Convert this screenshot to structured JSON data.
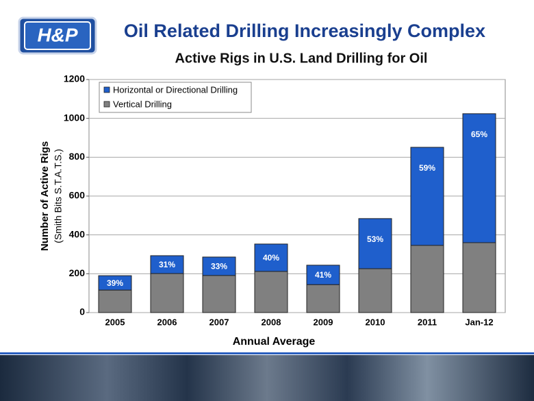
{
  "logo": "H&P",
  "chart_data": {
    "type": "stacked-bar",
    "title": "Oil Related Drilling Increasingly Complex",
    "subtitle": "Active Rigs in U.S. Land Drilling for Oil",
    "y_label": [
      "Number of Active Rigs",
      "(Smith Bits S.T.A.T.S.)"
    ],
    "x_label": "Annual Average",
    "categories": [
      "2005",
      "2006",
      "2007",
      "2008",
      "2009",
      "2010",
      "2011",
      "Jan-12"
    ],
    "series": [
      {
        "name": "Vertical Drilling",
        "color": "#808080",
        "values": [
          116,
          201,
          191,
          212,
          144,
          226,
          346,
          360
        ]
      },
      {
        "name": "Horizontal or Directional Drilling",
        "color": "#1f5fcc",
        "values": [
          74,
          92,
          95,
          141,
          100,
          258,
          505,
          664
        ]
      }
    ],
    "annotations": [
      "39%",
      "31%",
      "33%",
      "40%",
      "41%",
      "53%",
      "59%",
      "65%"
    ],
    "ylim": [
      0,
      1200
    ],
    "yticks": [
      0,
      200,
      400,
      600,
      800,
      1000,
      1200
    ],
    "grid": true
  }
}
